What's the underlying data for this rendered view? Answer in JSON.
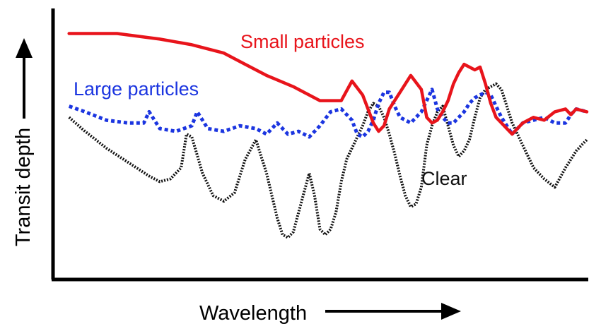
{
  "chart_data": {
    "type": "line",
    "xlabel": "Wavelength",
    "ylabel": "Transit depth",
    "x_range": [
      0,
      100
    ],
    "y_range": [
      0,
      100
    ],
    "grid": false,
    "series": [
      {
        "name": "Small particles",
        "color": "#e8141b",
        "style": "solid",
        "x": [
          3,
          12,
          20,
          26,
          32,
          36,
          40,
          45,
          50,
          54,
          56,
          58,
          60,
          61,
          62,
          63,
          65,
          67,
          69,
          70,
          71,
          72,
          73,
          74,
          75,
          76,
          77,
          78,
          79,
          80,
          81,
          82,
          83,
          84,
          85,
          86,
          88,
          90,
          92,
          94,
          96,
          97,
          98,
          100
        ],
        "y": [
          88,
          88,
          86,
          84,
          81,
          77,
          73,
          69,
          64,
          64,
          71,
          66,
          56,
          53,
          55,
          61,
          67,
          73,
          68,
          58,
          56,
          57,
          60,
          64,
          70,
          74,
          77,
          76,
          75,
          76,
          70,
          63,
          58,
          56,
          54,
          52,
          56,
          58,
          57,
          60,
          61,
          59,
          61,
          60
        ]
      },
      {
        "name": "Large particles",
        "color": "#1b35e0",
        "style": "dotted",
        "x": [
          3,
          6,
          10,
          14,
          17,
          18,
          20,
          23,
          26,
          27,
          29,
          32,
          35,
          38,
          40,
          42,
          44,
          46,
          48,
          50,
          52,
          54,
          56,
          57,
          58,
          59,
          60,
          61,
          62,
          63,
          64,
          65,
          67,
          69,
          70,
          71,
          72,
          73,
          74,
          75,
          76,
          77,
          78,
          79,
          80,
          81,
          82,
          83,
          84,
          85,
          86,
          88,
          90,
          92,
          94,
          96,
          97,
          98,
          100
        ],
        "y": [
          62,
          60,
          57,
          56,
          56,
          60,
          54,
          53,
          55,
          60,
          54,
          53,
          55,
          54,
          52,
          56,
          52,
          53,
          51,
          55,
          60,
          61,
          57,
          52,
          51,
          53,
          57,
          63,
          67,
          67,
          62,
          58,
          56,
          60,
          64,
          68,
          61,
          58,
          56,
          56,
          58,
          60,
          63,
          65,
          66,
          67,
          66,
          62,
          58,
          55,
          52,
          56,
          57,
          58,
          56,
          56,
          59,
          61,
          60
        ]
      },
      {
        "name": "Clear",
        "color": "#111111",
        "style": "dotted",
        "x": [
          3,
          6,
          10,
          14,
          18,
          20,
          22,
          24,
          25,
          26,
          28,
          30,
          32,
          34,
          36,
          38,
          40,
          42,
          43,
          44,
          45,
          46,
          47,
          48,
          49,
          50,
          51,
          52,
          53,
          54,
          55,
          56,
          57,
          58,
          59,
          60,
          61,
          62,
          63,
          64,
          65,
          66,
          67,
          68,
          69,
          70,
          71,
          72,
          73,
          74,
          75,
          76,
          77,
          78,
          79,
          80,
          81,
          82,
          83,
          84,
          85,
          86,
          88,
          90,
          92,
          94,
          96,
          98,
          100
        ],
        "y": [
          58,
          53,
          47,
          42,
          37,
          35,
          36,
          40,
          52,
          51,
          38,
          30,
          28,
          31,
          43,
          50,
          38,
          22,
          16,
          15,
          17,
          24,
          31,
          38,
          30,
          18,
          16,
          18,
          24,
          35,
          43,
          47,
          51,
          55,
          60,
          63,
          62,
          58,
          52,
          45,
          37,
          30,
          26,
          27,
          33,
          48,
          55,
          60,
          62,
          55,
          48,
          44,
          46,
          50,
          58,
          65,
          68,
          69,
          70,
          68,
          62,
          56,
          48,
          40,
          36,
          33,
          40,
          46,
          50
        ]
      }
    ]
  }
}
